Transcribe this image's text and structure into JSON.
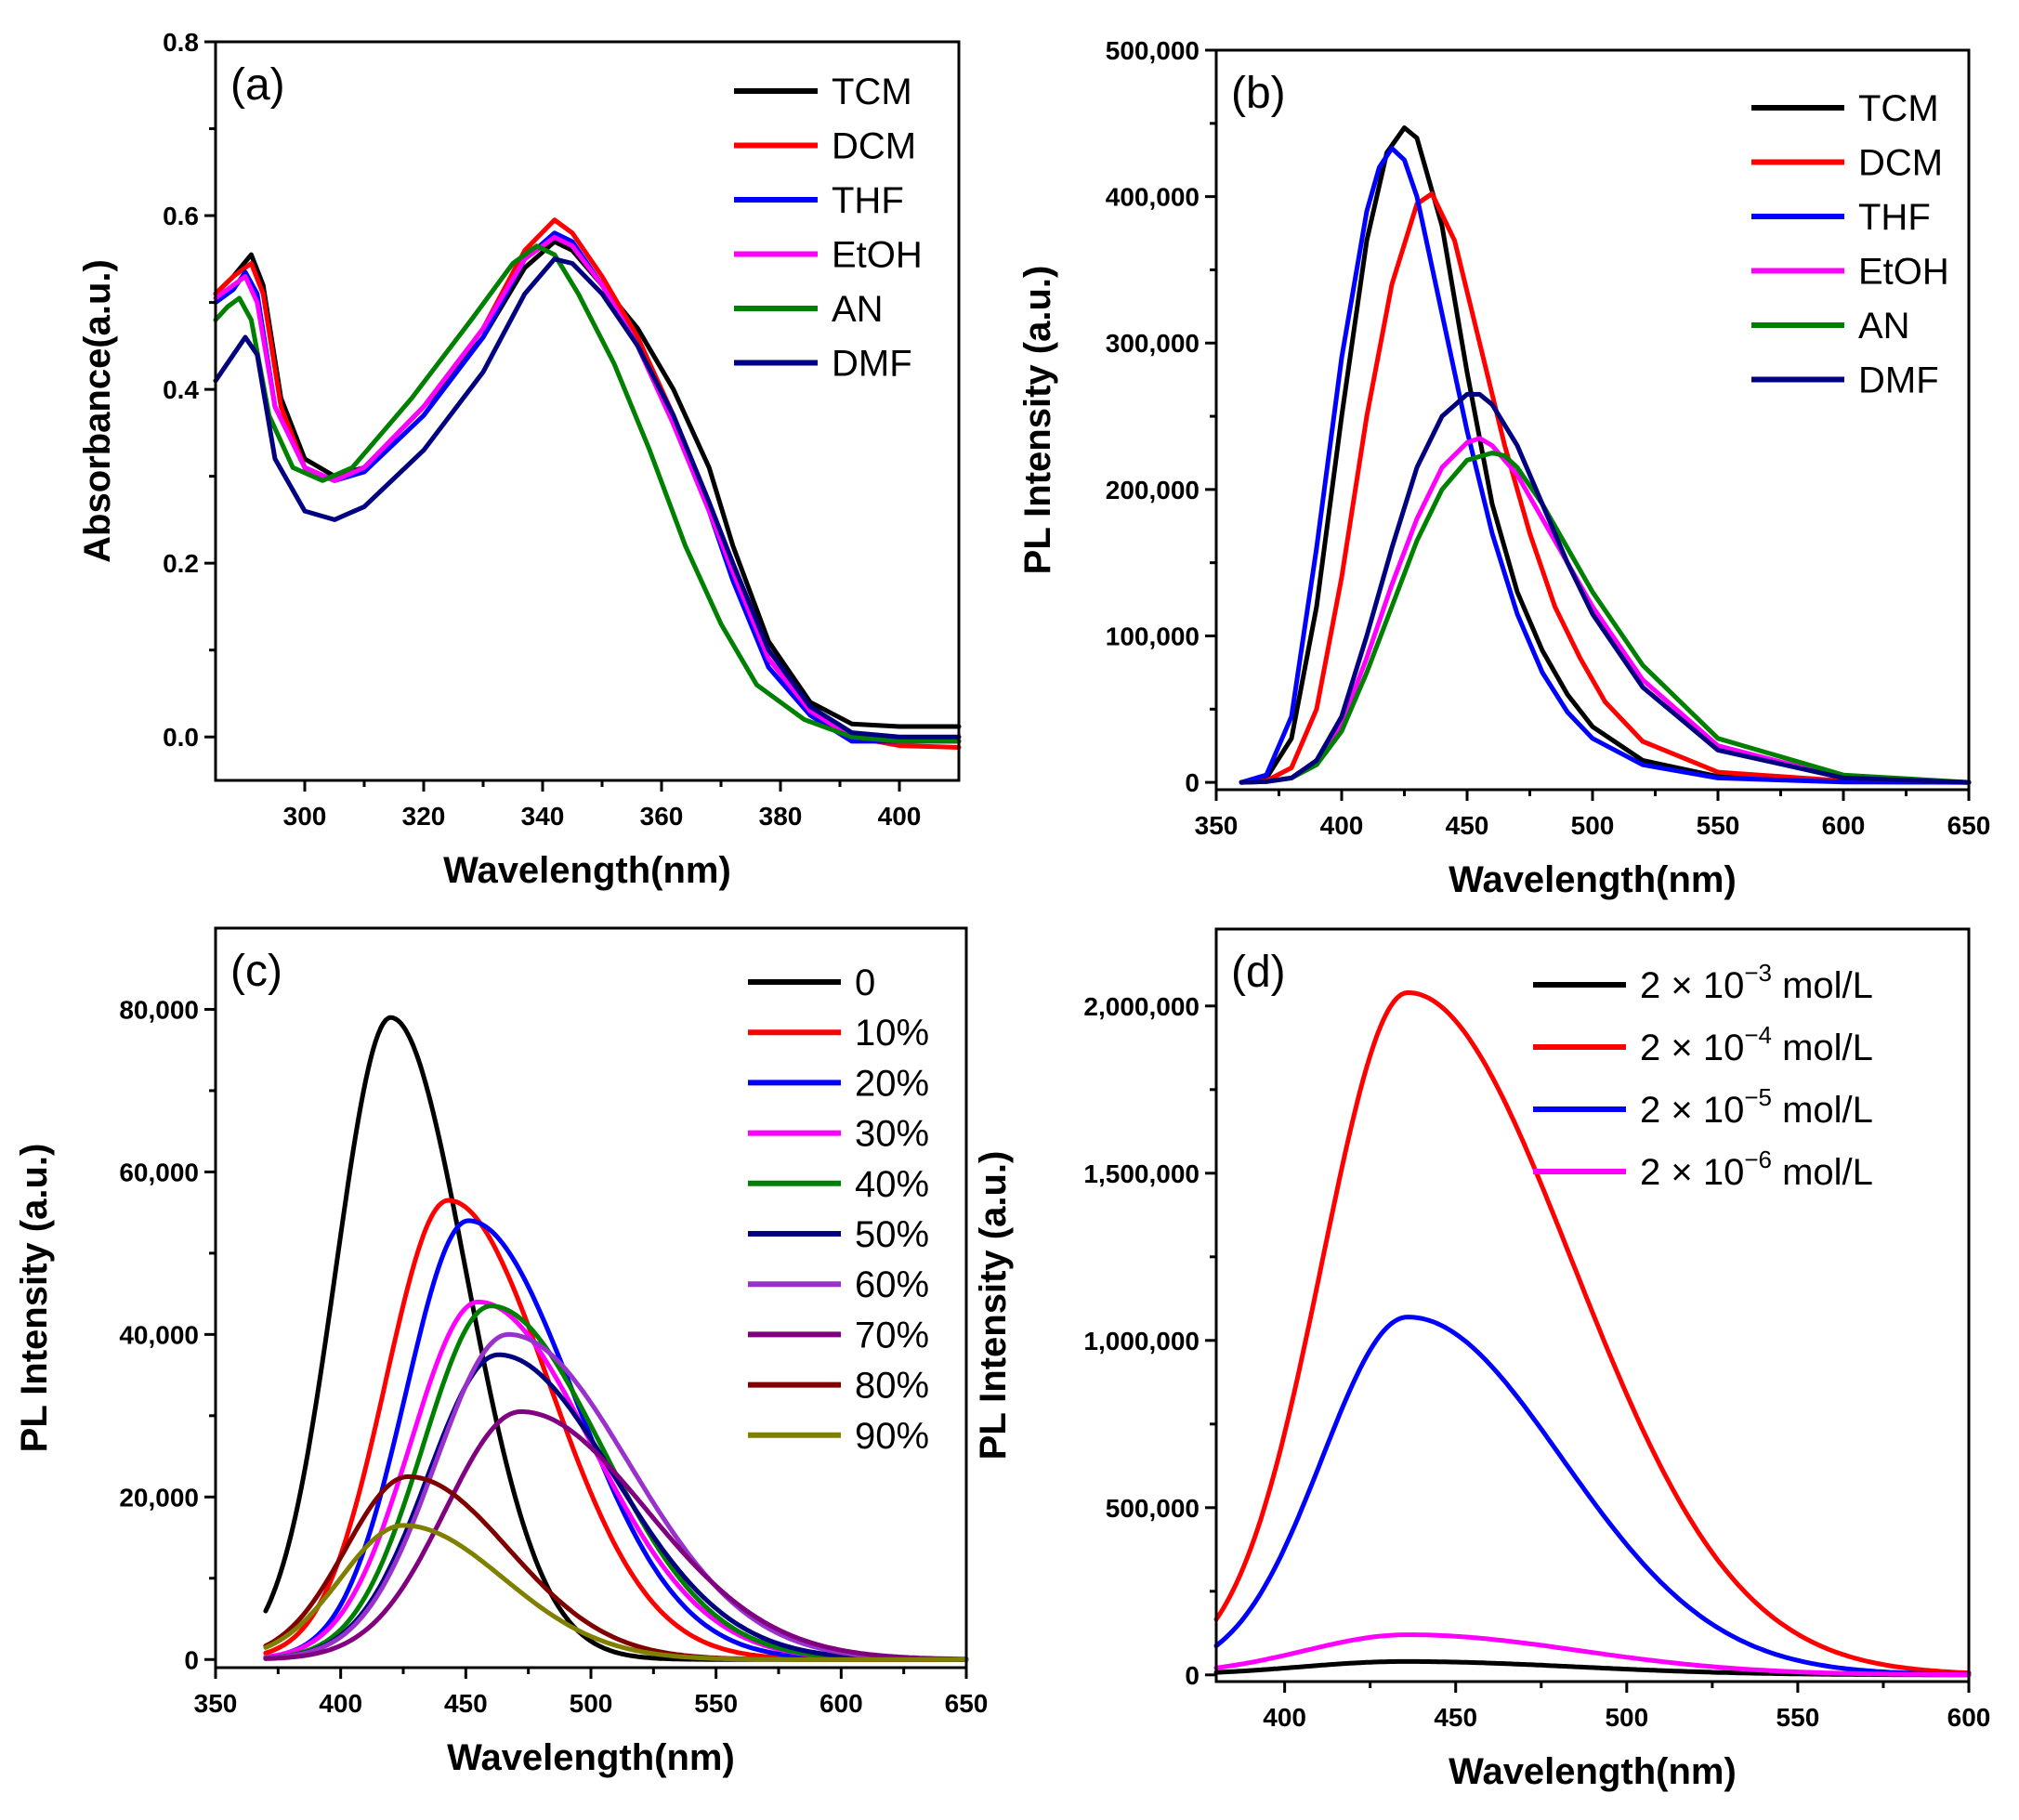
{
  "chart_data": [
    {
      "type": "line",
      "panel_label": "(a)",
      "xlabel": "Wavelength(nm)",
      "ylabel": "Absorbance(a.u.)",
      "xlim": [
        285,
        410
      ],
      "ylim": [
        -0.05,
        0.8
      ],
      "xticks": [
        300,
        320,
        340,
        360,
        380,
        400
      ],
      "yticks": [
        0.0,
        0.2,
        0.4,
        0.6,
        0.8
      ],
      "xtick_labels": [
        "300",
        "320",
        "340",
        "360",
        "380",
        "400"
      ],
      "ytick_labels": [
        "0.0",
        "0.2",
        "0.4",
        "0.6",
        "0.8"
      ],
      "legend_position": "top-right",
      "series": [
        {
          "name": "TCM",
          "color": "#000000",
          "x": [
            285,
            288,
            291,
            293,
            296,
            300,
            305,
            310,
            320,
            330,
            337,
            342,
            345,
            350,
            356,
            362,
            368,
            372,
            378,
            385,
            392,
            400,
            410
          ],
          "y": [
            0.51,
            0.53,
            0.555,
            0.52,
            0.39,
            0.32,
            0.3,
            0.31,
            0.38,
            0.46,
            0.54,
            0.57,
            0.56,
            0.52,
            0.47,
            0.4,
            0.31,
            0.22,
            0.11,
            0.04,
            0.015,
            0.012,
            0.012
          ]
        },
        {
          "name": "DCM",
          "color": "#ff0000",
          "x": [
            285,
            288,
            291,
            293,
            296,
            300,
            305,
            310,
            320,
            330,
            337,
            342,
            345,
            350,
            356,
            362,
            368,
            372,
            378,
            385,
            392,
            400,
            410
          ],
          "y": [
            0.51,
            0.53,
            0.545,
            0.51,
            0.38,
            0.31,
            0.295,
            0.31,
            0.38,
            0.47,
            0.56,
            0.595,
            0.58,
            0.53,
            0.46,
            0.37,
            0.27,
            0.19,
            0.09,
            0.03,
            0.0,
            -0.01,
            -0.012
          ]
        },
        {
          "name": "THF",
          "color": "#0000ff",
          "x": [
            285,
            288,
            290,
            292,
            295,
            300,
            305,
            310,
            320,
            330,
            337,
            342,
            345,
            350,
            356,
            362,
            368,
            372,
            378,
            385,
            392,
            400,
            410
          ],
          "y": [
            0.5,
            0.515,
            0.535,
            0.51,
            0.38,
            0.31,
            0.295,
            0.305,
            0.37,
            0.46,
            0.55,
            0.58,
            0.57,
            0.52,
            0.45,
            0.36,
            0.26,
            0.18,
            0.08,
            0.025,
            -0.005,
            -0.005,
            -0.005
          ]
        },
        {
          "name": "EtOH",
          "color": "#ff00ff",
          "x": [
            285,
            288,
            290,
            292,
            295,
            300,
            305,
            310,
            320,
            330,
            337,
            342,
            345,
            350,
            356,
            362,
            368,
            372,
            378,
            385,
            392,
            400,
            410
          ],
          "y": [
            0.505,
            0.52,
            0.53,
            0.5,
            0.38,
            0.31,
            0.295,
            0.31,
            0.38,
            0.47,
            0.55,
            0.575,
            0.565,
            0.52,
            0.45,
            0.36,
            0.26,
            0.19,
            0.09,
            0.03,
            0.0,
            -0.005,
            -0.005
          ]
        },
        {
          "name": "AN",
          "color": "#008000",
          "x": [
            285,
            287,
            289,
            291,
            294,
            298,
            303,
            308,
            318,
            328,
            335,
            339,
            342,
            346,
            352,
            358,
            364,
            370,
            376,
            384,
            392,
            400,
            410
          ],
          "y": [
            0.48,
            0.495,
            0.505,
            0.48,
            0.37,
            0.31,
            0.295,
            0.31,
            0.39,
            0.48,
            0.545,
            0.565,
            0.555,
            0.51,
            0.43,
            0.33,
            0.22,
            0.13,
            0.06,
            0.02,
            0.0,
            -0.005,
            -0.005
          ]
        },
        {
          "name": "DMF",
          "color": "#000080",
          "x": [
            285,
            288,
            290,
            292,
            295,
            300,
            305,
            310,
            320,
            330,
            337,
            342,
            345,
            350,
            356,
            362,
            368,
            372,
            378,
            385,
            392,
            400,
            410
          ],
          "y": [
            0.41,
            0.44,
            0.46,
            0.44,
            0.32,
            0.26,
            0.25,
            0.265,
            0.33,
            0.42,
            0.51,
            0.55,
            0.545,
            0.51,
            0.45,
            0.37,
            0.27,
            0.2,
            0.1,
            0.035,
            0.005,
            0.0,
            0.0
          ]
        }
      ]
    },
    {
      "type": "line",
      "panel_label": "(b)",
      "xlabel": "Wavelength(nm)",
      "ylabel": "PL Intensity (a.u.)",
      "xlim": [
        350,
        650
      ],
      "ylim": [
        -5000,
        500000
      ],
      "xticks": [
        350,
        400,
        450,
        500,
        550,
        600,
        650
      ],
      "yticks": [
        0,
        100000,
        200000,
        300000,
        400000,
        500000
      ],
      "xtick_labels": [
        "350",
        "400",
        "450",
        "500",
        "550",
        "600",
        "650"
      ],
      "ytick_labels": [
        "0",
        "100,000",
        "200,000",
        "300,000",
        "400,000",
        "500,000"
      ],
      "legend_position": "top-right",
      "series": [
        {
          "name": "TCM",
          "color": "#000000",
          "x": [
            360,
            370,
            380,
            390,
            400,
            410,
            418,
            425,
            430,
            440,
            450,
            460,
            470,
            480,
            490,
            500,
            520,
            550,
            600,
            650
          ],
          "y": [
            0,
            3000,
            30000,
            120000,
            250000,
            370000,
            430000,
            447000,
            440000,
            380000,
            280000,
            190000,
            130000,
            90000,
            60000,
            38000,
            15000,
            4000,
            500,
            0
          ]
        },
        {
          "name": "DCM",
          "color": "#ff0000",
          "x": [
            360,
            370,
            380,
            390,
            400,
            410,
            420,
            430,
            436,
            445,
            455,
            465,
            475,
            485,
            495,
            505,
            520,
            550,
            600,
            650
          ],
          "y": [
            0,
            1000,
            10000,
            50000,
            140000,
            250000,
            340000,
            395000,
            402000,
            370000,
            300000,
            230000,
            170000,
            120000,
            85000,
            55000,
            28000,
            7000,
            1000,
            0
          ]
        },
        {
          "name": "THF",
          "color": "#0000ff",
          "x": [
            360,
            370,
            380,
            390,
            400,
            410,
            415,
            420,
            425,
            430,
            440,
            450,
            460,
            470,
            480,
            490,
            500,
            520,
            550,
            600,
            650
          ],
          "y": [
            0,
            5000,
            45000,
            160000,
            290000,
            390000,
            420000,
            433000,
            425000,
            400000,
            320000,
            240000,
            170000,
            115000,
            75000,
            48000,
            30000,
            12000,
            3000,
            200,
            0
          ]
        },
        {
          "name": "EtOH",
          "color": "#ff00ff",
          "x": [
            360,
            370,
            380,
            390,
            400,
            410,
            420,
            430,
            440,
            450,
            455,
            460,
            470,
            480,
            490,
            500,
            520,
            550,
            600,
            650
          ],
          "y": [
            0,
            500,
            3000,
            15000,
            40000,
            85000,
            135000,
            180000,
            215000,
            232000,
            235000,
            230000,
            210000,
            180000,
            150000,
            120000,
            70000,
            25000,
            3000,
            0
          ]
        },
        {
          "name": "AN",
          "color": "#008000",
          "x": [
            360,
            370,
            380,
            390,
            400,
            410,
            420,
            430,
            440,
            450,
            460,
            465,
            470,
            480,
            490,
            500,
            520,
            550,
            600,
            650
          ],
          "y": [
            0,
            500,
            3000,
            12000,
            35000,
            75000,
            120000,
            165000,
            200000,
            220000,
            225000,
            223000,
            215000,
            190000,
            160000,
            130000,
            80000,
            30000,
            5000,
            0
          ]
        },
        {
          "name": "DMF",
          "color": "#000080",
          "x": [
            360,
            370,
            380,
            390,
            400,
            410,
            420,
            430,
            440,
            450,
            455,
            460,
            470,
            480,
            490,
            500,
            520,
            550,
            600,
            650
          ],
          "y": [
            0,
            500,
            3000,
            15000,
            45000,
            100000,
            160000,
            215000,
            250000,
            265000,
            265000,
            258000,
            230000,
            190000,
            150000,
            115000,
            65000,
            22000,
            3000,
            0
          ]
        }
      ]
    },
    {
      "type": "line",
      "panel_label": "(c)",
      "xlabel": "Wavelength(nm)",
      "ylabel": "PL Intensity (a.u.)",
      "xlim": [
        350,
        650
      ],
      "ylim": [
        -1000,
        90000
      ],
      "xticks": [
        350,
        400,
        450,
        500,
        550,
        600,
        650
      ],
      "yticks": [
        0,
        20000,
        40000,
        60000,
        80000
      ],
      "xtick_labels": [
        "350",
        "400",
        "450",
        "500",
        "550",
        "600",
        "650"
      ],
      "ytick_labels": [
        "0",
        "20,000",
        "40,000",
        "60,000",
        "80,000"
      ],
      "legend_position": "top-right",
      "series": [
        {
          "name": "0",
          "color": "#000000",
          "peak": 420,
          "amp": 79000,
          "wl": 22,
          "wr": 30
        },
        {
          "name": "10%",
          "color": "#ff0000",
          "peak": 443,
          "amp": 56500,
          "wl": 25,
          "wr": 40
        },
        {
          "name": "20%",
          "color": "#0000ff",
          "peak": 451,
          "amp": 54000,
          "wl": 25,
          "wr": 42
        },
        {
          "name": "30%",
          "color": "#ff00ff",
          "peak": 455,
          "amp": 44000,
          "wl": 27,
          "wr": 45
        },
        {
          "name": "40%",
          "color": "#008000",
          "peak": 460,
          "amp": 43500,
          "wl": 27,
          "wr": 44
        },
        {
          "name": "50%",
          "color": "#000080",
          "peak": 463,
          "amp": 37500,
          "wl": 28,
          "wr": 46
        },
        {
          "name": "60%",
          "color": "#9932cc",
          "peak": 467,
          "amp": 40000,
          "wl": 29,
          "wr": 48
        },
        {
          "name": "70%",
          "color": "#800080",
          "peak": 472,
          "amp": 30500,
          "wl": 30,
          "wr": 50
        },
        {
          "name": "80%",
          "color": "#800000",
          "peak": 427,
          "amp": 22500,
          "wl": 25,
          "wr": 40
        },
        {
          "name": "90%",
          "color": "#808000",
          "peak": 425,
          "amp": 16500,
          "wl": 25,
          "wr": 40
        }
      ]
    },
    {
      "type": "line",
      "panel_label": "(d)",
      "xlabel": "Wavelength(nm)",
      "ylabel": "PL Intensity (a.u.)",
      "xlim": [
        380,
        600
      ],
      "ylim": [
        -20000,
        2230000
      ],
      "xticks": [
        400,
        450,
        500,
        550,
        600
      ],
      "yticks": [
        0,
        500000,
        1000000,
        1500000,
        2000000
      ],
      "xtick_labels": [
        "400",
        "450",
        "500",
        "550",
        "600"
      ],
      "ytick_labels": [
        "0",
        "500,000",
        "1,000,000",
        "1,500,000",
        "2,000,000"
      ],
      "legend_position": "top-right",
      "series": [
        {
          "name": "2 × 10",
          "sup": "−3",
          "unit": " mol/L",
          "color": "#000000",
          "peak": 435,
          "amp": 40000,
          "wl": 30,
          "wr": 50
        },
        {
          "name": "2 × 10",
          "sup": "−4",
          "unit": " mol/L",
          "color": "#ff0000",
          "peak": 436,
          "amp": 2040000,
          "wl": 25,
          "wr": 48
        },
        {
          "name": "2 × 10",
          "sup": "−5",
          "unit": " mol/L",
          "color": "#0000ff",
          "peak": 436,
          "amp": 1070000,
          "wl": 25,
          "wr": 45
        },
        {
          "name": "2 × 10",
          "sup": "−6",
          "unit": " mol/L",
          "color": "#ff00ff",
          "peak": 436,
          "amp": 120000,
          "wl": 30,
          "wr": 50
        }
      ]
    }
  ]
}
